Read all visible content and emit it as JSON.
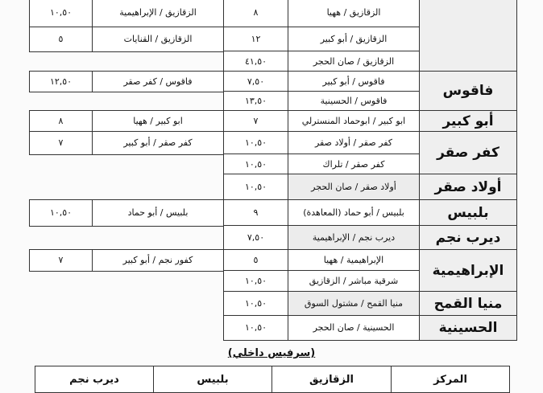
{
  "fare_table": {
    "groups": [
      {
        "center": "",
        "routes": [
          {
            "route": "الزقازيق / ههيا",
            "fare": "٨",
            "other_route": "الزقازيق / الإبراهيمية",
            "other_fare": "١٠,٥٠"
          },
          {
            "route": "الزقازيق / أبو كبير",
            "fare": "١٢",
            "other_route": "الزقازيق / القنايات",
            "other_fare": "٥"
          },
          {
            "route": "الزقازيق / صان الحجر",
            "fare": "٤١,٥٠"
          }
        ]
      },
      {
        "center": "فاقوس",
        "routes": [
          {
            "route": "فاقوس / أبو كبير",
            "fare": "٧,٥٠",
            "other_route": "فاقوس / كفر صقر",
            "other_fare": "١٢,٥٠"
          },
          {
            "route": "فاقوس / الحسينية",
            "fare": "١٣,٥٠"
          }
        ]
      },
      {
        "center": "أبو كبير",
        "routes": [
          {
            "route": "ابو كبير / ابوحماد المنسترلي",
            "fare": "٧",
            "other_route": "ابو كبير / ههيا",
            "other_fare": "٨"
          }
        ]
      },
      {
        "center": "كفر صقر",
        "routes": [
          {
            "route": "كفر صقر / أولاد صقر",
            "fare": "١٠,٥٠",
            "other_route": "كفر صقر / أبو كبير",
            "other_fare": "٧"
          },
          {
            "route": "كفر صقر / تلراك",
            "fare": "١٠,٥٠"
          }
        ]
      },
      {
        "center": "أولاد صقر",
        "routes": [
          {
            "route": "أولاد صقر / صان الحجر",
            "fare": "١٠,٥٠"
          }
        ]
      },
      {
        "center": "بلبيس",
        "routes": [
          {
            "route": "بلبيس / أبو حماد (المعاهدة)",
            "fare": "٩",
            "other_route": "بلبيس / أبو حماد",
            "other_fare": "١٠,٥٠"
          }
        ]
      },
      {
        "center": "ديرب نجم",
        "routes": [
          {
            "route": "ديرب نجم / الإبراهيمية",
            "fare": "٧,٥٠"
          }
        ]
      },
      {
        "center": "الإبراهيمية",
        "routes": [
          {
            "route": "الإبراهيمية / ههيا",
            "fare": "٥",
            "other_route": "كفور نجم / أبو كبير",
            "other_fare": "٧"
          },
          {
            "route": "شرقية مباشر / الزقازيق",
            "fare": "١٠,٥٠"
          }
        ]
      },
      {
        "center": "منيا القمح",
        "routes": [
          {
            "route": "منيا القمح / مشتول السوق",
            "fare": "١٠,٥٠"
          }
        ]
      },
      {
        "center": "الحسينية",
        "routes": [
          {
            "route": "الحسينية / صان الحجر",
            "fare": "١٠,٥٠"
          }
        ]
      }
    ]
  },
  "internal_service": {
    "title": "(سرفيس داخلي)",
    "headers": [
      "المركز",
      "الزقازيق",
      "بلبيس",
      "ديرب نجم"
    ]
  }
}
